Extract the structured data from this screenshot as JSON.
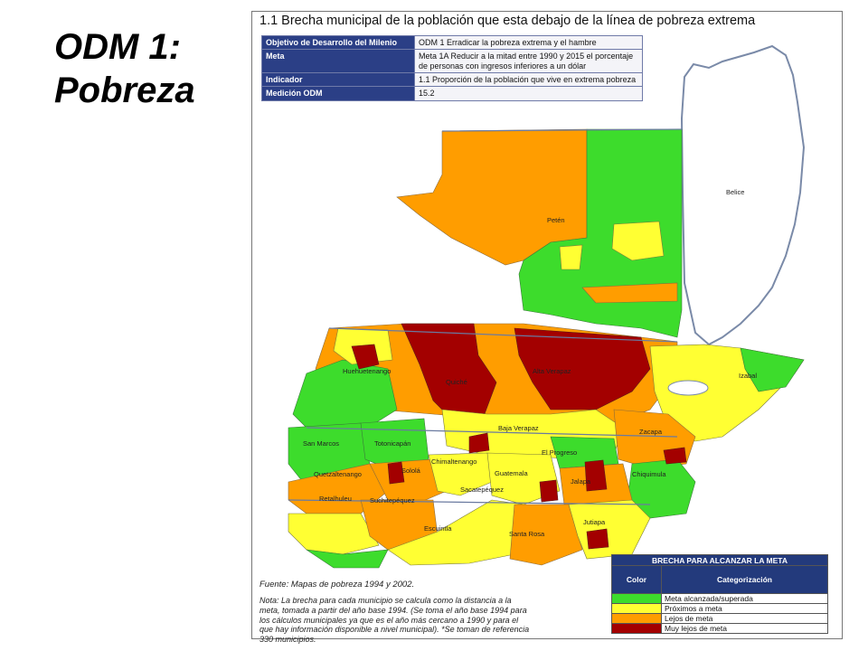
{
  "slide": {
    "title": "ODM 1: Pobreza"
  },
  "map": {
    "title": "1.1 Brecha municipal de la población que esta debajo de la línea de pobreza extrema",
    "info_rows": [
      {
        "key": "Objetivo de Desarrollo del Milenio",
        "value": "ODM 1 Erradicar la pobreza extrema y el hambre"
      },
      {
        "key": "Meta",
        "value": "Meta 1A Reducir a la mitad entre 1990 y 2015 el porcentaje de personas con ingresos inferiores a un dólar"
      },
      {
        "key": "Indicador",
        "value": "1.1 Proporción de la población que vive en extrema pobreza"
      },
      {
        "key": "Medición ODM",
        "value": "15.2"
      }
    ],
    "place_labels": {
      "belice": "Belice",
      "peten": "Petén",
      "izabal": "Izabal",
      "huehuetenango": "Huehuetenango",
      "quiche": "Quiché",
      "alta_verapaz": "Alta Verapaz",
      "baja_verapaz": "Baja Verapaz",
      "zacapa": "Zacapa",
      "el_progreso": "El Progreso",
      "san_marcos": "San Marcos",
      "totonicapan": "Totonicapán",
      "quetzaltenango": "Quetzaltenango",
      "solola": "Sololá",
      "chimaltenango": "Chimaltenango",
      "guatemala": "Guatemala",
      "sacatepequez": "Sacatepéquez",
      "jalapa": "Jalapa",
      "chiquimula": "Chiquimula",
      "retalhuleu": "Retalhuleu",
      "suchitepequez": "Suchitepéquez",
      "escuintla": "Escuintla",
      "santa_rosa": "Santa Rosa",
      "jutiapa": "Jutiapa"
    },
    "source": "Fuente: Mapas de pobreza 1994 y 2002.",
    "note": "Nota: La brecha para cada municipio se calcula como la distancia a la meta, tomada a partir del año base 1994. (Se toma el año base 1994 para los cálculos municipales ya que es el año más cercano a 1990 y para el que hay información disponible a nivel municipal). *Se toman de referencia 330 municipios.",
    "legend": {
      "title": "BRECHA PARA ALCANZAR LA META",
      "col_color": "Color",
      "col_category": "Categorización",
      "items": [
        {
          "label": "Meta alcanzada/superada",
          "color": "#3ddc2c"
        },
        {
          "label": "Próximos a meta",
          "color": "#ffff33"
        },
        {
          "label": "Lejos de meta",
          "color": "#ff9d00"
        },
        {
          "label": "Muy lejos de meta",
          "color": "#a30000"
        }
      ]
    },
    "colors": {
      "green": "#3ddc2c",
      "yellow": "#ffff33",
      "orange": "#ff9d00",
      "red": "#a30000",
      "header_blue": "#2b3f86"
    }
  }
}
